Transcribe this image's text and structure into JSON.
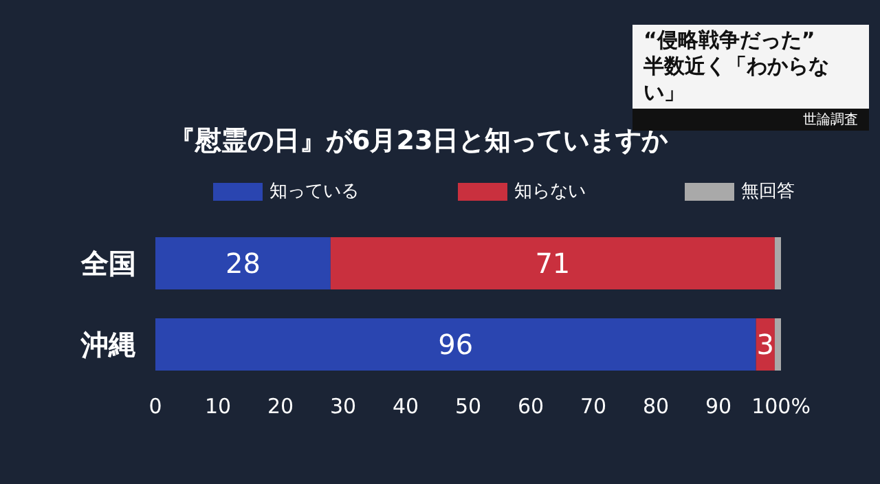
{
  "chart_data": {
    "type": "bar",
    "orientation": "horizontal",
    "stacked": true,
    "title": "『慰霊の日』が6月23日と知っていますか",
    "categories": [
      "全国",
      "沖縄"
    ],
    "series": [
      {
        "name": "知っている",
        "color": "#2a45b0",
        "values": [
          28,
          96
        ],
        "value_labels": [
          "28",
          "96"
        ]
      },
      {
        "name": "知らない",
        "color": "#c9303e",
        "values": [
          71,
          3
        ],
        "value_labels": [
          "71",
          "3"
        ]
      },
      {
        "name": "無回答",
        "color": "#a9a9a9",
        "values": [
          1,
          1
        ],
        "value_labels": [
          null,
          null
        ]
      }
    ],
    "xlim": [
      0,
      100
    ],
    "xticks": [
      0,
      10,
      20,
      30,
      40,
      50,
      60,
      70,
      80,
      90,
      {
        "value": 100,
        "label": "100%"
      }
    ],
    "legend": "top",
    "grid": false,
    "annotations": [
      "“侵略戦争だった”",
      "半数近く「わからない」",
      "世論調査"
    ]
  }
}
